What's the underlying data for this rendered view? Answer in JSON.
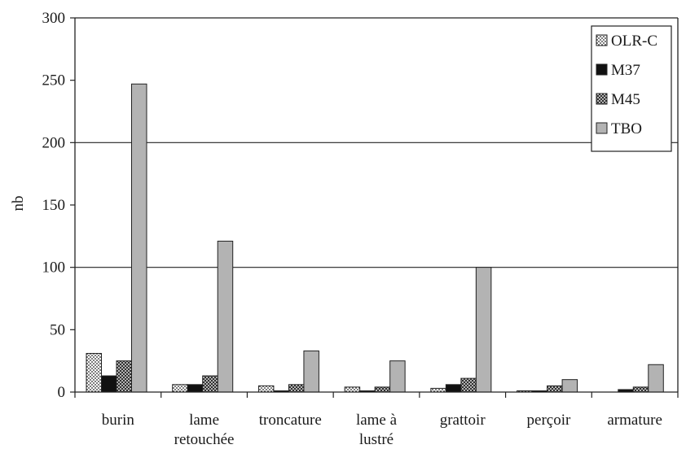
{
  "chart_data": {
    "type": "bar",
    "title": "",
    "xlabel": "",
    "ylabel": "nb",
    "ylim": [
      0,
      300
    ],
    "yticks": [
      0,
      50,
      100,
      150,
      200,
      250,
      300
    ],
    "grid": "horizontal lines at 100, 200, 300",
    "legend_position": "top-right",
    "categories": [
      [
        "burin"
      ],
      [
        "lame",
        "retouchée"
      ],
      [
        "troncature"
      ],
      [
        "lame à",
        "lustré"
      ],
      [
        "grattoir"
      ],
      [
        "perçoir"
      ],
      [
        "armature"
      ]
    ],
    "series": [
      {
        "name": "OLR-C",
        "pattern": "dots",
        "values": [
          31,
          6,
          5,
          4,
          3,
          1,
          0
        ]
      },
      {
        "name": "M37",
        "pattern": "solid-black",
        "values": [
          13,
          6,
          1,
          1,
          6,
          1,
          2
        ]
      },
      {
        "name": "M45",
        "pattern": "crosshatch",
        "values": [
          25,
          13,
          6,
          4,
          11,
          5,
          4
        ]
      },
      {
        "name": "TBO",
        "pattern": "solid-gray",
        "values": [
          247,
          121,
          33,
          25,
          100,
          10,
          22
        ]
      }
    ],
    "colors": {
      "TBO": "#b3b3b3",
      "M37": "#111111",
      "frame": "#222222"
    }
  }
}
